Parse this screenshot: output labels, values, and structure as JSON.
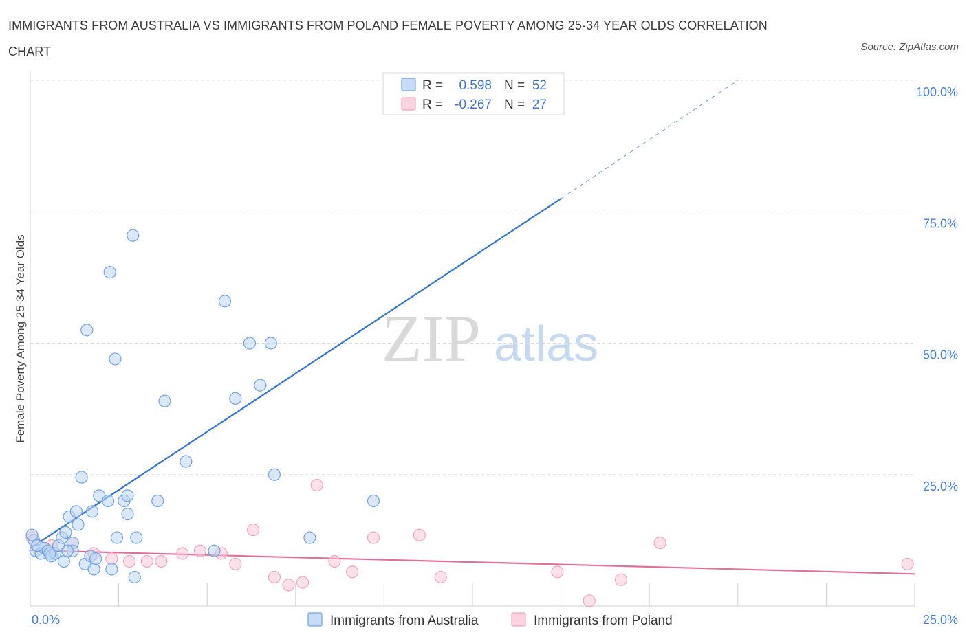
{
  "title": "IMMIGRANTS FROM AUSTRALIA VS IMMIGRANTS FROM POLAND FEMALE POVERTY AMONG 25-34 YEAR OLDS CORRELATION CHART",
  "source": "Source: ZipAtlas.com",
  "watermark": {
    "zip": "ZIP",
    "atlas": "atlas"
  },
  "stats": {
    "r_label": "R =",
    "n_label": "N =",
    "australia": {
      "r": "0.598",
      "n": "52"
    },
    "poland": {
      "r": "-0.267",
      "n": "27"
    }
  },
  "colors": {
    "australia": "#6fa3e6",
    "australia_line": "#2e74d0",
    "poland": "#f2a5be",
    "poland_line": "#e0709a",
    "tick_text": "#4a7fd0"
  },
  "chart_data": {
    "type": "scatter",
    "title": "IMMIGRANTS FROM AUSTRALIA VS IMMIGRANTS FROM POLAND FEMALE POVERTY AMONG 25-34 YEAR OLDS CORRELATION CHART",
    "xlabel": "",
    "ylabel": "Female Poverty Among 25-34 Year Olds",
    "xlim": [
      0,
      25
    ],
    "ylim": [
      0,
      100
    ],
    "x_ticks": [
      "0.0%",
      "25.0%"
    ],
    "y_ticks": [
      "25.0%",
      "50.0%",
      "75.0%",
      "100.0%"
    ],
    "grid": true,
    "legend": [
      "Immigrants from Australia",
      "Immigrants from Poland"
    ],
    "series": [
      {
        "name": "Immigrants from Australia",
        "trend": {
          "x": [
            0,
            15
          ],
          "y": [
            11.0,
            77.5
          ],
          "dashed_to": [
            20,
            100
          ]
        },
        "points": [
          [
            0.1,
            12.5
          ],
          [
            0.15,
            10.5
          ],
          [
            0.3,
            10.0
          ],
          [
            0.4,
            11.0
          ],
          [
            0.5,
            10.5
          ],
          [
            0.6,
            9.5
          ],
          [
            0.7,
            10.0
          ],
          [
            0.8,
            11.5
          ],
          [
            0.9,
            13.0
          ],
          [
            1.0,
            14.0
          ],
          [
            0.95,
            8.5
          ],
          [
            1.1,
            17.0
          ],
          [
            1.2,
            12.0
          ],
          [
            1.2,
            10.5
          ],
          [
            1.3,
            18.0
          ],
          [
            1.35,
            15.5
          ],
          [
            1.45,
            24.5
          ],
          [
            1.55,
            8.0
          ],
          [
            1.6,
            52.5
          ],
          [
            1.7,
            9.5
          ],
          [
            1.75,
            18.0
          ],
          [
            1.8,
            7.0
          ],
          [
            1.85,
            9.0
          ],
          [
            1.95,
            21.0
          ],
          [
            2.2,
            20.0
          ],
          [
            2.25,
            63.5
          ],
          [
            2.3,
            7.0
          ],
          [
            2.4,
            47.0
          ],
          [
            2.45,
            13.0
          ],
          [
            2.65,
            20.0
          ],
          [
            2.75,
            21.0
          ],
          [
            2.75,
            17.5
          ],
          [
            2.9,
            70.5
          ],
          [
            2.95,
            5.5
          ],
          [
            3.0,
            13.0
          ],
          [
            3.6,
            20.0
          ],
          [
            3.8,
            39.0
          ],
          [
            4.4,
            27.5
          ],
          [
            5.2,
            10.5
          ],
          [
            5.5,
            58.0
          ],
          [
            5.8,
            39.5
          ],
          [
            6.2,
            50.0
          ],
          [
            6.5,
            42.0
          ],
          [
            6.8,
            50.0
          ],
          [
            6.9,
            25.0
          ],
          [
            7.9,
            13.0
          ],
          [
            9.7,
            20.0
          ],
          [
            12.3,
            100.0
          ],
          [
            0.05,
            13.5
          ],
          [
            0.2,
            11.5
          ],
          [
            0.55,
            10.0
          ],
          [
            1.05,
            10.5
          ]
        ]
      },
      {
        "name": "Immigrants from Poland",
        "trend": {
          "x": [
            0,
            25
          ],
          "y": [
            10.6,
            6.1
          ]
        },
        "points": [
          [
            0.05,
            13.0
          ],
          [
            0.6,
            11.5
          ],
          [
            1.2,
            12.0
          ],
          [
            1.8,
            10.0
          ],
          [
            2.3,
            9.0
          ],
          [
            2.8,
            8.5
          ],
          [
            3.3,
            8.5
          ],
          [
            3.7,
            8.5
          ],
          [
            4.3,
            10.0
          ],
          [
            4.8,
            10.5
          ],
          [
            5.4,
            10.0
          ],
          [
            5.8,
            8.0
          ],
          [
            6.3,
            14.5
          ],
          [
            6.9,
            5.5
          ],
          [
            7.3,
            4.0
          ],
          [
            7.7,
            4.5
          ],
          [
            8.1,
            23.0
          ],
          [
            8.6,
            8.5
          ],
          [
            9.1,
            6.5
          ],
          [
            9.7,
            13.0
          ],
          [
            11.0,
            13.5
          ],
          [
            11.6,
            5.5
          ],
          [
            14.9,
            6.5
          ],
          [
            15.8,
            1.0
          ],
          [
            16.7,
            5.0
          ],
          [
            17.8,
            12.0
          ],
          [
            24.8,
            8.0
          ]
        ]
      }
    ]
  }
}
